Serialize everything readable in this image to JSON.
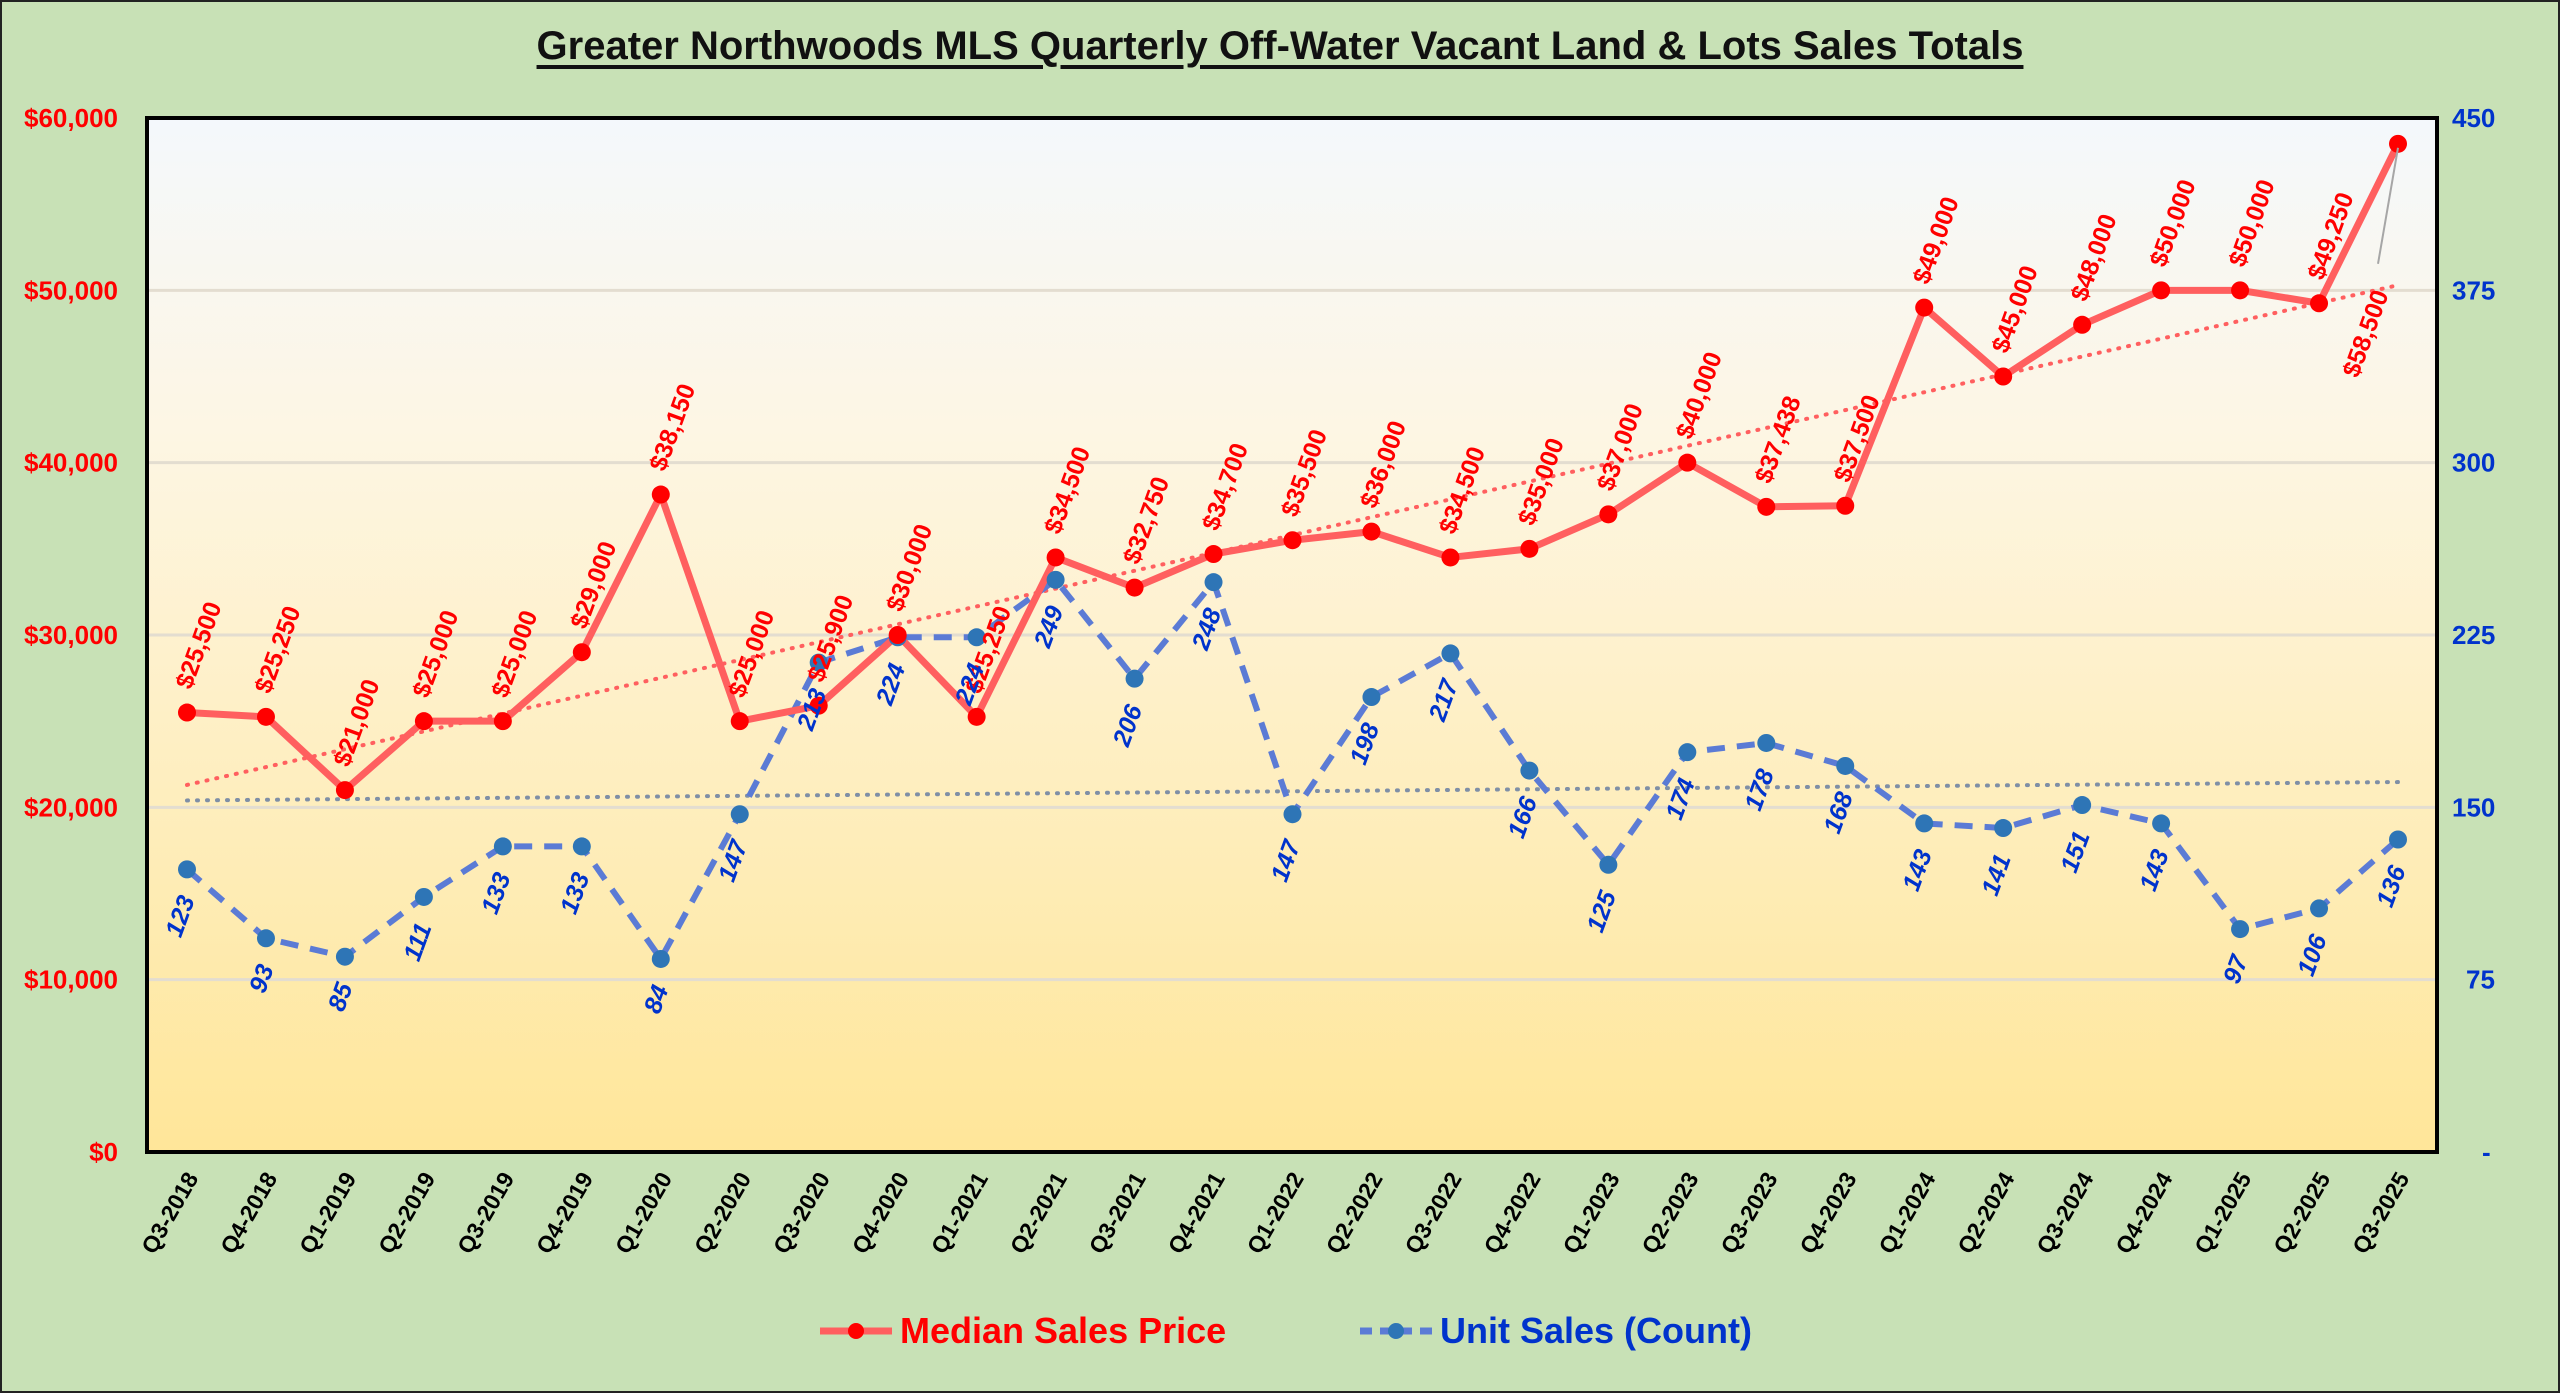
{
  "chart_data": {
    "type": "line",
    "title": "Greater Northwoods MLS Quarterly Off-Water Vacant Land & Lots Sales Totals",
    "xlabel": "",
    "ylabel_left": "Median Sales Price",
    "ylabel_right": "Unit Sales (Count)",
    "categories": [
      "Q3-2018",
      "Q4-2018",
      "Q1-2019",
      "Q2-2019",
      "Q3-2019",
      "Q4-2019",
      "Q1-2020",
      "Q2-2020",
      "Q3-2020",
      "Q4-2020",
      "Q1-2021",
      "Q2-2021",
      "Q3-2021",
      "Q4-2021",
      "Q1-2022",
      "Q2-2022",
      "Q3-2022",
      "Q4-2022",
      "Q1-2023",
      "Q2-2023",
      "Q3-2023",
      "Q4-2023",
      "Q1-2024",
      "Q2-2024",
      "Q3-2024",
      "Q4-2024",
      "Q1-2025",
      "Q2-2025",
      "Q3-2025"
    ],
    "series": [
      {
        "name": "Median Sales Price",
        "axis": "left",
        "color": "#ff5f5f",
        "marker_color": "#ff0000",
        "values": [
          25500,
          25250,
          21000,
          25000,
          25000,
          29000,
          38150,
          25000,
          25900,
          30000,
          25250,
          34500,
          32750,
          34700,
          35500,
          36000,
          34500,
          35000,
          37000,
          40000,
          37438,
          37500,
          49000,
          45000,
          48000,
          50000,
          50000,
          49250,
          58500
        ],
        "labels": [
          "$25,500",
          "$25,250",
          "$21,000",
          "$25,000",
          "$25,000",
          "$29,000",
          "$38,150",
          "$25,000",
          "$25,900",
          "$30,000",
          "$25,250",
          "$34,500",
          "$32,750",
          "$34,700",
          "$35,500",
          "$36,000",
          "$34,500",
          "$35,000",
          "$37,000",
          "$40,000",
          "$37,438",
          "$37,500",
          "$49,000",
          "$45,000",
          "$48,000",
          "$50,000",
          "$50,000",
          "$49,250",
          "$58,500"
        ],
        "trendline": {
          "style": "linear-dotted",
          "start": 21300,
          "end": 50300
        }
      },
      {
        "name": "Unit Sales (Count)",
        "axis": "right",
        "color": "#5b7bd5",
        "marker_color": "#2e75b6",
        "values": [
          123,
          93,
          85,
          111,
          133,
          133,
          84,
          147,
          213,
          224,
          224,
          249,
          206,
          248,
          147,
          198,
          217,
          166,
          125,
          174,
          178,
          168,
          143,
          141,
          151,
          143,
          97,
          106,
          136
        ],
        "trendline": {
          "style": "linear-dotted",
          "start": 153,
          "end": 161
        }
      }
    ],
    "y_left": {
      "ylim": [
        0,
        60000
      ],
      "ticks": [
        "$0",
        "$10,000",
        "$20,000",
        "$30,000",
        "$40,000",
        "$50,000",
        "$60,000"
      ]
    },
    "y_right": {
      "ylim": [
        0,
        450
      ],
      "ticks": [
        "-",
        "75",
        "150",
        "225",
        "300",
        "375",
        "450"
      ]
    },
    "grid": true,
    "legend": {
      "placement": "bottom",
      "items": [
        "Median Sales Price",
        "Unit Sales (Count)"
      ]
    },
    "colors": {
      "background": "#c8e1b6",
      "plot_top": "#f4f8fc",
      "plot_bottom": "#ffe699",
      "price": "#ff0000",
      "units": "#0033cc"
    }
  }
}
